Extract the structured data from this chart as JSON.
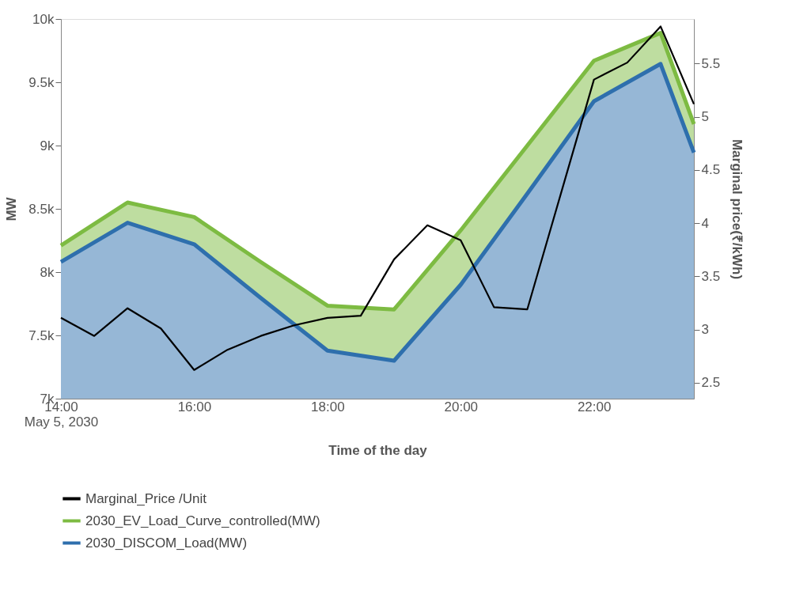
{
  "chart_data": {
    "type": "area",
    "xlabel": "Time of the day",
    "ylabel": "MW",
    "y2label": "Marginal price(₹/kWh)",
    "xlim": [
      "2030-05-05T14:00",
      "2030-05-05T23:30"
    ],
    "xticks": [
      {
        "value": "2030-05-05T14:00",
        "label": "14:00\nMay 5, 2030"
      },
      {
        "value": "2030-05-05T16:00",
        "label": "16:00"
      },
      {
        "value": "2030-05-05T18:00",
        "label": "18:00"
      },
      {
        "value": "2030-05-05T20:00",
        "label": "20:00"
      },
      {
        "value": "2030-05-05T22:00",
        "label": "22:00"
      }
    ],
    "ylim": [
      7000,
      10000
    ],
    "yticks": [
      {
        "value": 7000,
        "label": "7k"
      },
      {
        "value": 7500,
        "label": "7.5k"
      },
      {
        "value": 8000,
        "label": "8k"
      },
      {
        "value": 8500,
        "label": "8.5k"
      },
      {
        "value": 9000,
        "label": "9k"
      },
      {
        "value": 9500,
        "label": "9.5k"
      },
      {
        "value": 10000,
        "label": "10k"
      }
    ],
    "y2lim": [
      2.35,
      5.92
    ],
    "y2ticks": [
      2.5,
      3,
      3.5,
      4,
      4.5,
      5,
      5.5
    ],
    "grid": false,
    "legend": "bottom",
    "series": [
      {
        "name": "Marginal_Price /Unit",
        "type": "line",
        "axis": "y2",
        "color": "#000000",
        "x": [
          "2030-05-05T14:00",
          "2030-05-05T14:30",
          "2030-05-05T15:00",
          "2030-05-05T15:30",
          "2030-05-05T16:00",
          "2030-05-05T16:30",
          "2030-05-05T17:00",
          "2030-05-05T17:30",
          "2030-05-05T18:00",
          "2030-05-05T18:30",
          "2030-05-05T19:00",
          "2030-05-05T19:30",
          "2030-05-05T20:00",
          "2030-05-05T20:30",
          "2030-05-05T21:00",
          "2030-05-05T21:30",
          "2030-05-05T22:00",
          "2030-05-05T22:30",
          "2030-05-05T23:00",
          "2030-05-05T23:30"
        ],
        "values": [
          3.11,
          2.94,
          3.2,
          3.01,
          2.62,
          2.81,
          2.94,
          3.04,
          3.11,
          3.13,
          3.66,
          3.98,
          3.84,
          3.21,
          3.19,
          4.27,
          5.35,
          5.51,
          5.85,
          5.12
        ]
      },
      {
        "name": "2030_EV_Load_Curve_controlled(MW)",
        "color": "#7dbb42",
        "x": [
          "2030-05-05T14:00",
          "2030-05-05T15:00",
          "2030-05-05T16:00",
          "2030-05-05T17:00",
          "2030-05-05T18:00",
          "2030-05-05T19:00",
          "2030-05-05T20:00",
          "2030-05-05T21:00",
          "2030-05-05T22:00",
          "2030-05-05T23:00",
          "2030-05-05T23:30"
        ],
        "values": [
          8210,
          8550,
          8435,
          8080,
          7735,
          7705,
          8330,
          9000,
          9670,
          9890,
          9170
        ]
      },
      {
        "name": "2030_DISCOM_Load(MW)",
        "color": "#2e6fad",
        "x": [
          "2030-05-05T14:00",
          "2030-05-05T15:00",
          "2030-05-05T16:00",
          "2030-05-05T17:00",
          "2030-05-05T18:00",
          "2030-05-05T19:00",
          "2030-05-05T20:00",
          "2030-05-05T21:00",
          "2030-05-05T22:00",
          "2030-05-05T23:00",
          "2030-05-05T23:30"
        ],
        "values": [
          8080,
          8390,
          8220,
          7795,
          7380,
          7300,
          7900,
          8620,
          9350,
          9645,
          8945
        ]
      }
    ]
  }
}
